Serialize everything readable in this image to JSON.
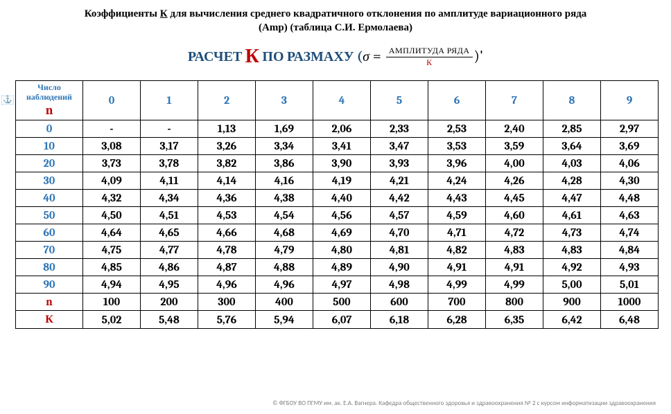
{
  "title_line1": "Коэффициенты К для вычисления среднего квадратичного отклонения по амплитуде вариационного ряда",
  "title_line2": "(Amp) (таблица С.И. Ермолаева)",
  "formula": {
    "prefix": "РАСЧЕТ ",
    "k": "К",
    "middle": " ПО РАЗМАХУ  (",
    "sigma": "σ",
    "eq": " = ",
    "numerator": "АМПЛИТУДА РЯДА",
    "denominator": "К",
    "suffix": ")"
  },
  "anchor": "⚓",
  "header": {
    "n_label_line1": "Число",
    "n_label_line2": "наблюдений",
    "n_symbol": "n",
    "cols": [
      "0",
      "1",
      "2",
      "3",
      "4",
      "5",
      "6",
      "7",
      "8",
      "9"
    ]
  },
  "row_labels": [
    "0",
    "10",
    "20",
    "30",
    "40",
    "50",
    "60",
    "70",
    "80",
    "90"
  ],
  "rows": [
    [
      "-",
      "-",
      "1,13",
      "1,69",
      "2,06",
      "2,33",
      "2,53",
      "2,40",
      "2,85",
      "2,97"
    ],
    [
      "3,08",
      "3,17",
      "3,26",
      "3,34",
      "3,41",
      "3,47",
      "3,53",
      "3,59",
      "3,64",
      "3,69"
    ],
    [
      "3,73",
      "3,78",
      "3,82",
      "3,86",
      "3,90",
      "3,93",
      "3,96",
      "4,00",
      "4,03",
      "4,06"
    ],
    [
      "4,09",
      "4,11",
      "4,14",
      "4,16",
      "4,19",
      "4,21",
      "4,24",
      "4,26",
      "4,28",
      "4,30"
    ],
    [
      "4,32",
      "4,34",
      "4,36",
      "4,38",
      "4,40",
      "4,42",
      "4,43",
      "4,45",
      "4,47",
      "4,48"
    ],
    [
      "4,50",
      "4,51",
      "4,53",
      "4,54",
      "4,56",
      "4,57",
      "4,59",
      "4,60",
      "4,61",
      "4,63"
    ],
    [
      "4,64",
      "4,65",
      "4,66",
      "4,68",
      "4,69",
      "4,70",
      "4,71",
      "4,72",
      "4,73",
      "4,74"
    ],
    [
      "4,75",
      "4,77",
      "4,78",
      "4,79",
      "4,80",
      "4,81",
      "4,82",
      "4,83",
      "4,83",
      "4,84"
    ],
    [
      "4,85",
      "4,86",
      "4,87",
      "4,88",
      "4,89",
      "4,90",
      "4,91",
      "4,91",
      "4,92",
      "4,93"
    ],
    [
      "4,94",
      "4,95",
      "4,96",
      "4,96",
      "4,97",
      "4,98",
      "4,99",
      "4,99",
      "5,00",
      "5,01"
    ]
  ],
  "extra": {
    "n_label": "n",
    "k_label": "К",
    "n_values": [
      "100",
      "200",
      "300",
      "400",
      "500",
      "600",
      "700",
      "800",
      "900",
      "1000"
    ],
    "k_values": [
      "5,02",
      "5,48",
      "5,76",
      "5,94",
      "6,07",
      "6,18",
      "6,28",
      "6,35",
      "6,42",
      "6,48"
    ]
  },
  "footer": "© ФГБОУ ВО ПГМУ им. ак. Е.А. Вагнера. Кафедра общественного здоровья и здравоохранения № 2 с курсом информатизации здравоохранения",
  "style": {
    "blue": "#2e75b6",
    "red": "#c00000",
    "bg": "#ffffff",
    "border": "#000000",
    "footer_color": "#7f7f7f"
  }
}
